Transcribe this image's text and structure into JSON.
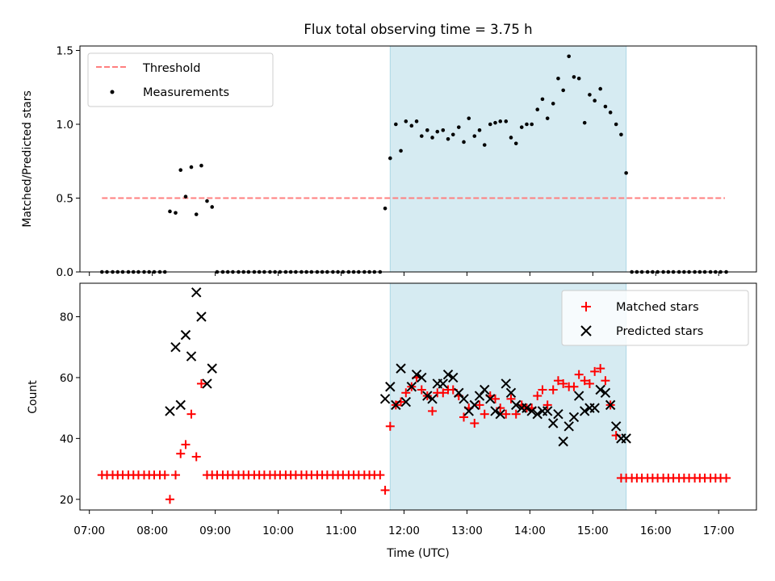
{
  "chart_data": [
    {
      "type": "scatter",
      "title": "Flux total observing time = 3.75 h",
      "xlabel": "",
      "ylabel": "Matched/Predicted stars",
      "x_unit": "hours UTC",
      "xlim": [
        6.85,
        17.6
      ],
      "ylim": [
        0,
        1.53
      ],
      "yticks": [
        0.0,
        0.5,
        1.0,
        1.5
      ],
      "ytick_labels": [
        "0.0",
        "0.5",
        "1.0",
        "1.5"
      ],
      "grid": false,
      "legend_position": "top-left",
      "shaded_region": {
        "x": [
          11.78,
          15.53
        ],
        "color": "#add8e6"
      },
      "threshold": {
        "name": "Threshold",
        "y": 0.5,
        "x": [
          7.2,
          17.1
        ],
        "color": "#ff7f7f",
        "style": "dashed"
      },
      "series": [
        {
          "name": "Measurements",
          "color": "#000000",
          "marker": "dot",
          "x": [
            7.2,
            7.28,
            7.37,
            7.45,
            7.53,
            7.62,
            7.7,
            7.78,
            7.87,
            7.95,
            8.03,
            8.12,
            8.2,
            8.28,
            8.37,
            8.45,
            8.53,
            8.62,
            8.7,
            8.78,
            8.87,
            8.95,
            9.03,
            9.12,
            9.2,
            9.28,
            9.37,
            9.45,
            9.53,
            9.62,
            9.7,
            9.78,
            9.87,
            9.95,
            10.03,
            10.12,
            10.2,
            10.28,
            10.37,
            10.45,
            10.53,
            10.62,
            10.7,
            10.78,
            10.87,
            10.95,
            11.03,
            11.12,
            11.2,
            11.28,
            11.37,
            11.45,
            11.53,
            11.62,
            11.7,
            11.78,
            11.87,
            11.95,
            12.03,
            12.12,
            12.2,
            12.28,
            12.37,
            12.45,
            12.53,
            12.62,
            12.7,
            12.78,
            12.87,
            12.95,
            13.03,
            13.12,
            13.2,
            13.28,
            13.37,
            13.45,
            13.53,
            13.62,
            13.7,
            13.78,
            13.87,
            13.95,
            14.03,
            14.12,
            14.2,
            14.28,
            14.37,
            14.45,
            14.53,
            14.62,
            14.7,
            14.78,
            14.87,
            14.95,
            15.03,
            15.12,
            15.2,
            15.28,
            15.37,
            15.45,
            15.53,
            15.62,
            15.7,
            15.78,
            15.87,
            15.95,
            16.03,
            16.12,
            16.2,
            16.28,
            16.37,
            16.45,
            16.53,
            16.62,
            16.7,
            16.78,
            16.87,
            16.95,
            17.03,
            17.12
          ],
          "y": [
            0,
            0,
            0,
            0,
            0,
            0,
            0,
            0,
            0,
            0,
            0,
            0,
            0,
            0.41,
            0.4,
            0.69,
            0.51,
            0.71,
            0.39,
            0.72,
            0.48,
            0.44,
            0,
            0,
            0,
            0,
            0,
            0,
            0,
            0,
            0,
            0,
            0,
            0,
            0,
            0,
            0,
            0,
            0,
            0,
            0,
            0,
            0,
            0,
            0,
            0,
            0,
            0,
            0,
            0,
            0,
            0,
            0,
            0,
            0.43,
            0.77,
            1.0,
            0.82,
            1.02,
            0.99,
            1.02,
            0.92,
            0.96,
            0.91,
            0.95,
            0.96,
            0.9,
            0.93,
            0.98,
            0.88,
            1.04,
            0.92,
            0.96,
            0.86,
            1.0,
            1.01,
            1.02,
            1.02,
            0.91,
            0.87,
            0.98,
            1.0,
            1.0,
            1.1,
            1.17,
            1.04,
            1.14,
            1.31,
            1.23,
            1.46,
            1.32,
            1.31,
            1.01,
            1.2,
            1.16,
            1.24,
            1.12,
            1.08,
            1.0,
            0.93,
            0.67,
            0,
            0,
            0,
            0,
            0,
            0,
            0,
            0,
            0,
            0,
            0,
            0,
            0,
            0,
            0,
            0,
            0,
            0,
            0
          ]
        }
      ]
    },
    {
      "type": "scatter",
      "title": "",
      "xlabel": "Time (UTC)",
      "ylabel": "Count",
      "x_unit": "hours UTC",
      "xlim": [
        6.85,
        17.6
      ],
      "ylim": [
        16.5,
        91
      ],
      "yticks": [
        20,
        40,
        60,
        80
      ],
      "ytick_labels": [
        "20",
        "40",
        "60",
        "80"
      ],
      "xticks": [
        7,
        8,
        9,
        10,
        11,
        12,
        13,
        14,
        15,
        16,
        17
      ],
      "xtick_labels": [
        "07:00",
        "08:00",
        "09:00",
        "10:00",
        "11:00",
        "12:00",
        "13:00",
        "14:00",
        "15:00",
        "16:00",
        "17:00"
      ],
      "grid": false,
      "legend_position": "top-right",
      "shaded_region": {
        "x": [
          11.78,
          15.53
        ],
        "color": "#add8e6"
      },
      "series": [
        {
          "name": "Matched stars",
          "color": "#ff0000",
          "marker": "plus",
          "x": [
            7.2,
            7.28,
            7.37,
            7.45,
            7.53,
            7.62,
            7.7,
            7.78,
            7.87,
            7.95,
            8.03,
            8.12,
            8.2,
            8.28,
            8.37,
            8.45,
            8.53,
            8.62,
            8.7,
            8.78,
            8.87,
            8.95,
            9.03,
            9.12,
            9.2,
            9.28,
            9.37,
            9.45,
            9.53,
            9.62,
            9.7,
            9.78,
            9.87,
            9.95,
            10.03,
            10.12,
            10.2,
            10.28,
            10.37,
            10.45,
            10.53,
            10.62,
            10.7,
            10.78,
            10.87,
            10.95,
            11.03,
            11.12,
            11.2,
            11.28,
            11.37,
            11.45,
            11.53,
            11.62,
            11.7,
            11.78,
            11.87,
            11.95,
            12.03,
            12.12,
            12.2,
            12.28,
            12.37,
            12.45,
            12.53,
            12.62,
            12.7,
            12.78,
            12.87,
            12.95,
            13.03,
            13.12,
            13.2,
            13.28,
            13.37,
            13.45,
            13.53,
            13.62,
            13.7,
            13.78,
            13.87,
            13.95,
            14.03,
            14.12,
            14.2,
            14.28,
            14.37,
            14.45,
            14.53,
            14.62,
            14.7,
            14.78,
            14.87,
            14.95,
            15.03,
            15.12,
            15.2,
            15.28,
            15.37,
            15.45,
            15.53,
            15.62,
            15.7,
            15.78,
            15.87,
            15.95,
            16.03,
            16.12,
            16.2,
            16.28,
            16.37,
            16.45,
            16.53,
            16.62,
            16.7,
            16.78,
            16.87,
            16.95,
            17.03,
            17.12
          ],
          "y": [
            28,
            28,
            28,
            28,
            28,
            28,
            28,
            28,
            28,
            28,
            28,
            28,
            28,
            20,
            28,
            35,
            38,
            48,
            34,
            58,
            28,
            28,
            28,
            28,
            28,
            28,
            28,
            28,
            28,
            28,
            28,
            28,
            28,
            28,
            28,
            28,
            28,
            28,
            28,
            28,
            28,
            28,
            28,
            28,
            28,
            28,
            28,
            28,
            28,
            28,
            28,
            28,
            28,
            28,
            23,
            44,
            51,
            52,
            55,
            57,
            60,
            56,
            54,
            49,
            55,
            55,
            56,
            56,
            54,
            47,
            50,
            45,
            51,
            48,
            54,
            53,
            50,
            48,
            53,
            48,
            51,
            50,
            50,
            54,
            56,
            51,
            56,
            59,
            58,
            57,
            57,
            61,
            59,
            58,
            62,
            63,
            59,
            51,
            41,
            27,
            27,
            27,
            27,
            27,
            27,
            27,
            27,
            27,
            27,
            27,
            27,
            27,
            27,
            27,
            27,
            27,
            27,
            27,
            27,
            27
          ]
        },
        {
          "name": "Predicted stars",
          "color": "#000000",
          "marker": "x",
          "x": [
            11.7,
            11.78,
            11.87,
            11.95,
            12.03,
            12.12,
            12.2,
            12.28,
            12.37,
            12.45,
            12.53,
            12.62,
            12.7,
            12.78,
            12.87,
            12.95,
            13.03,
            13.12,
            13.2,
            13.28,
            13.37,
            13.45,
            13.53,
            13.62,
            13.7,
            13.78,
            13.87,
            13.95,
            14.03,
            14.12,
            14.2,
            14.28,
            14.37,
            14.45,
            14.53,
            14.62,
            14.7,
            14.78,
            14.87,
            14.95,
            15.03,
            15.12,
            15.2,
            15.28,
            15.37,
            15.45,
            15.53,
            8.28,
            8.37,
            8.45,
            8.53,
            8.62,
            8.7,
            8.78,
            8.87,
            8.95
          ],
          "y": [
            53,
            57,
            51,
            63,
            52,
            57,
            61,
            60,
            54,
            53,
            58,
            58,
            61,
            60,
            55,
            53,
            49,
            51,
            54,
            56,
            53,
            49,
            48,
            58,
            55,
            51,
            50,
            50,
            49,
            48,
            49,
            49,
            45,
            48,
            39,
            44,
            47,
            54,
            49,
            50,
            50,
            56,
            55,
            51,
            44,
            40,
            40,
            49,
            70,
            51,
            74,
            67,
            88,
            80,
            58,
            63
          ]
        }
      ]
    }
  ]
}
